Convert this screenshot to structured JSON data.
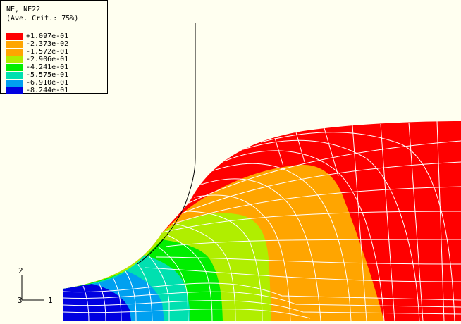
{
  "legend": {
    "title": "NE, NE22",
    "subtitle": "(Ave. Crit.: 75%)",
    "entries": [
      {
        "label": "+1.097e-01",
        "color": "#ff0000"
      },
      {
        "label": "-2.373e-02",
        "color": "#ffa500"
      },
      {
        "label": "-1.572e-01",
        "color": "#ffa500"
      },
      {
        "label": "-2.906e-01",
        "color": "#b0ee00"
      },
      {
        "label": "-4.241e-01",
        "color": "#00ee00"
      },
      {
        "label": "-5.575e-01",
        "color": "#00e0b0"
      },
      {
        "label": "-6.910e-01",
        "color": "#00a0f0"
      },
      {
        "label": "-8.244e-01",
        "color": "#0000e0"
      }
    ]
  },
  "triad": {
    "axis_vertical": "2",
    "axis_horizontal": "1",
    "axis_out": "3"
  },
  "colors": {
    "background": "#fffff0",
    "red": "#ff0000",
    "orange": "#ffa500",
    "yellowgreen": "#b0ee00",
    "green": "#00ee00",
    "cyan": "#00e0b0",
    "blue": "#0000e0",
    "mesh": "#ffffff"
  }
}
